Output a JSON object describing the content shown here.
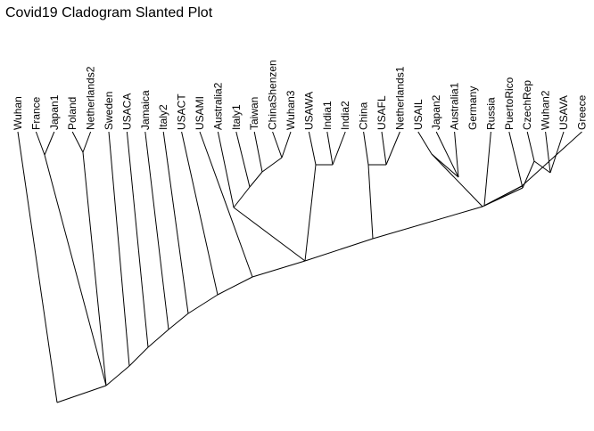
{
  "title": "Covid19 Cladogram Slanted Plot",
  "tips": [
    "Wuhan",
    "France",
    "Japan1",
    "Poland",
    "Netherlands2",
    "Sweden",
    "USACA",
    "Jamaica",
    "Italy2",
    "USACT",
    "USAMI",
    "Australia2",
    "Italy1",
    "Taiwan",
    "ChinaShenzen",
    "Wuhan3",
    "USAWA",
    "India1",
    "India2",
    "China",
    "USAFL",
    "Netherlands1",
    "USAIL",
    "Japan2",
    "Australia1",
    "Germany",
    "Russia",
    "PuertoRico",
    "CzechRep",
    "Wuhan2",
    "USAVA",
    "Greece"
  ]
}
